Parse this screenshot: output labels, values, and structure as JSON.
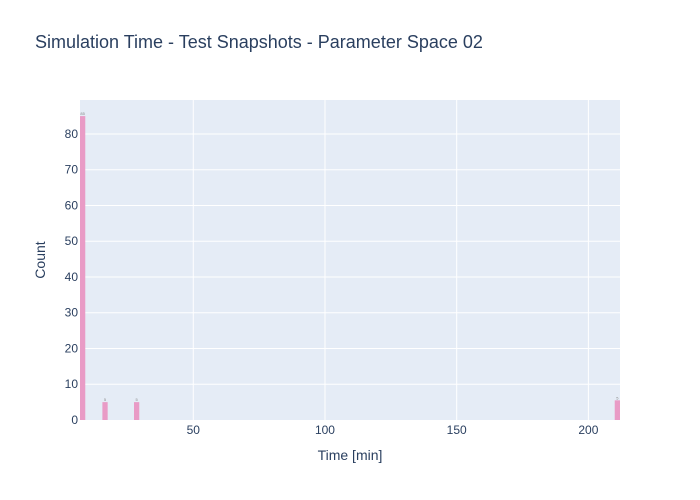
{
  "chart_data": {
    "type": "bar",
    "title": "Simulation Time - Test Snapshots - Parameter Space 02",
    "xlabel": "Time [min]",
    "ylabel": "Count",
    "x_ticks": [
      50,
      100,
      150,
      200
    ],
    "y_ticks": [
      0,
      10,
      20,
      30,
      40,
      50,
      60,
      70,
      80
    ],
    "xlim": [
      7,
      212
    ],
    "ylim": [
      0,
      89.5
    ],
    "bar_color": "#e99bc6",
    "plot_background": "#e5ecf6",
    "grid": true,
    "bars": [
      {
        "x0": 7,
        "x1": 9,
        "value": 85,
        "label": "85"
      },
      {
        "x0": 15.5,
        "x1": 17.5,
        "value": 5,
        "label": "5"
      },
      {
        "x0": 27.5,
        "x1": 29.5,
        "value": 5,
        "label": "5"
      },
      {
        "x0": 210,
        "x1": 212,
        "value": 5.5,
        "label": "5"
      }
    ]
  }
}
